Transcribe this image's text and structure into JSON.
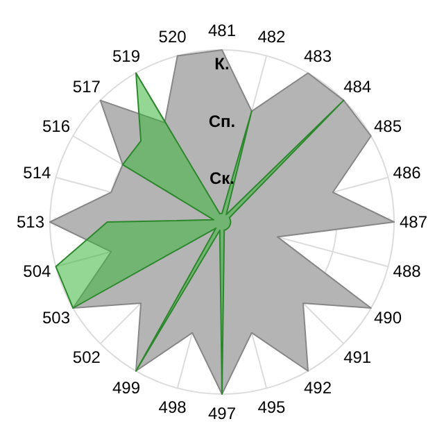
{
  "chart_data": {
    "type": "radar",
    "categories": [
      "481",
      "482",
      "483",
      "484",
      "485",
      "486",
      "487",
      "488",
      "490",
      "491",
      "492",
      "495",
      "497",
      "498",
      "499",
      "502",
      "503",
      "504",
      "513",
      "514",
      "516",
      "517",
      "519",
      "520"
    ],
    "ylim": [
      0,
      3
    ],
    "yticks": [
      {
        "value": 1,
        "label": "Ск."
      },
      {
        "value": 2,
        "label": "Сп."
      },
      {
        "value": 3,
        "label": "К."
      }
    ],
    "grid": true,
    "series": [
      {
        "color": "#b4b4b4",
        "values": [
          3,
          2,
          3,
          3,
          3,
          2,
          3,
          1,
          3,
          2,
          3,
          2,
          3,
          2,
          3,
          2,
          3,
          2,
          3,
          2,
          2,
          3,
          2,
          3
        ]
      },
      {
        "color": "#3cb43c",
        "values": [
          0.15,
          2,
          0.15,
          3,
          0.15,
          0.15,
          0.15,
          0.15,
          0.15,
          0.15,
          0.15,
          0.15,
          3,
          0.15,
          3,
          0.15,
          3,
          3,
          2,
          0.15,
          2,
          2,
          3,
          0.15
        ]
      }
    ]
  }
}
